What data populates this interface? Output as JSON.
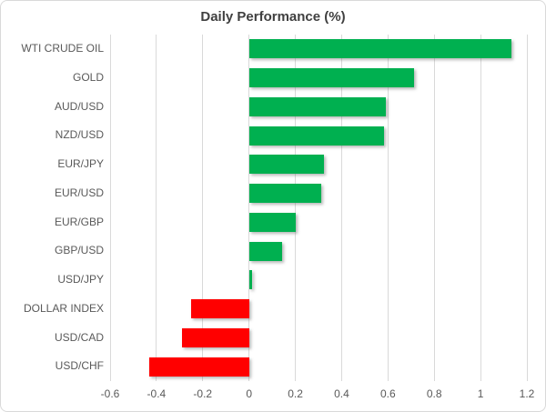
{
  "chart": {
    "title": "Daily Performance (%)"
  },
  "chart_data": {
    "type": "bar",
    "orientation": "horizontal",
    "title": "Daily Performance (%)",
    "categories": [
      "WTI CRUDE OIL",
      "GOLD",
      "AUD/USD",
      "NZD/USD",
      "EUR/JPY",
      "EUR/USD",
      "EUR/GBP",
      "GBP/USD",
      "USD/JPY",
      "DOLLAR INDEX",
      "USD/CAD",
      "USD/CHF"
    ],
    "values": [
      1.13,
      0.71,
      0.59,
      0.58,
      0.32,
      0.31,
      0.2,
      0.14,
      0.01,
      -0.25,
      -0.29,
      -0.43
    ],
    "xlabel": "",
    "ylabel": "",
    "xlim": [
      -0.6,
      1.2
    ],
    "xticks": [
      -0.6,
      -0.4,
      -0.2,
      0,
      0.2,
      0.4,
      0.6,
      0.8,
      1,
      1.2
    ],
    "xtick_labels": [
      "-0.6",
      "-0.4",
      "-0.2",
      "0",
      "0.2",
      "0.4",
      "0.6",
      "0.8",
      "1",
      "1.2"
    ],
    "grid": true,
    "legend": false,
    "colors": {
      "positive_bar": "#00B050",
      "negative_bar": "#FF0000",
      "gridline": "#D9D9D9",
      "axis_text": "#595959",
      "title_text": "#404040",
      "border": "#D9D9D9",
      "background": "#FFFFFF"
    }
  }
}
